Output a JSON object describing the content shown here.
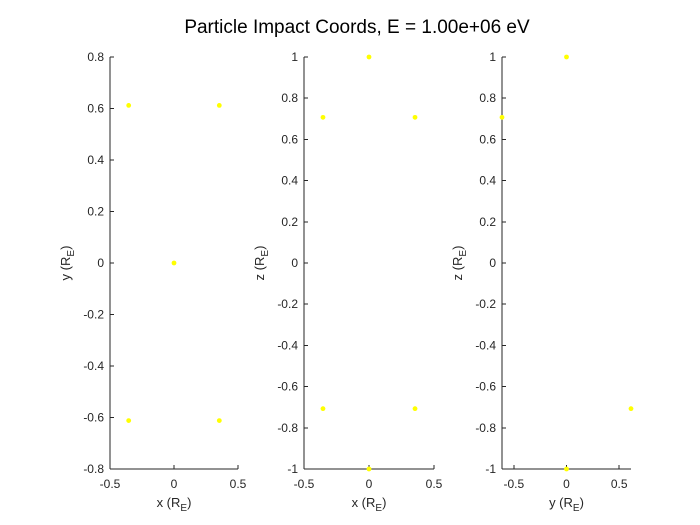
{
  "figure": {
    "title": "Particle Impact Coords, E = 1.00e+06 eV",
    "background": "#ffffff",
    "axis_color": "#262626"
  },
  "chart_data": [
    {
      "type": "scatter",
      "xlabel": {
        "main": "x (R",
        "sub": "E",
        "close": ")"
      },
      "ylabel": {
        "main": "y (R",
        "sub": "E",
        "close": ")"
      },
      "xlim": [
        -0.5,
        0.5
      ],
      "ylim": [
        -0.8,
        0.8
      ],
      "xticks": [
        -0.5,
        0,
        0.5
      ],
      "xtick_labels": [
        "-0.5",
        "0",
        "0.5"
      ],
      "yticks": [
        -0.8,
        -0.6,
        -0.4,
        -0.2,
        0,
        0.2,
        0.4,
        0.6,
        0.8
      ],
      "ytick_labels": [
        "-0.8",
        "-0.6",
        "-0.4",
        "-0.2",
        "0",
        "0.2",
        "0.4",
        "0.6",
        "0.8"
      ],
      "grid": false,
      "marker_color": "#ffff00",
      "points": [
        {
          "x": -0.354,
          "y": 0.612
        },
        {
          "x": 0.354,
          "y": 0.612
        },
        {
          "x": 0.0,
          "y": 0.0
        },
        {
          "x": -0.354,
          "y": -0.612
        },
        {
          "x": 0.354,
          "y": -0.612
        }
      ]
    },
    {
      "type": "scatter",
      "xlabel": {
        "main": "x (R",
        "sub": "E",
        "close": ")"
      },
      "ylabel": {
        "main": "z (R",
        "sub": "E",
        "close": ")"
      },
      "xlim": [
        -0.5,
        0.5
      ],
      "ylim": [
        -1,
        1
      ],
      "xticks": [
        -0.5,
        0,
        0.5
      ],
      "xtick_labels": [
        "-0.5",
        "0",
        "0.5"
      ],
      "yticks": [
        -1,
        -0.8,
        -0.6,
        -0.4,
        -0.2,
        0,
        0.2,
        0.4,
        0.6,
        0.8,
        1
      ],
      "ytick_labels": [
        "-1",
        "-0.8",
        "-0.6",
        "-0.4",
        "-0.2",
        "0",
        "0.2",
        "0.4",
        "0.6",
        "0.8",
        "1"
      ],
      "grid": false,
      "marker_color": "#ffff00",
      "points": [
        {
          "x": 0.0,
          "y": 1.0
        },
        {
          "x": -0.354,
          "y": 0.707
        },
        {
          "x": 0.354,
          "y": 0.707
        },
        {
          "x": -0.354,
          "y": -0.707
        },
        {
          "x": 0.354,
          "y": -0.707
        },
        {
          "x": 0.0,
          "y": -1.0
        }
      ]
    },
    {
      "type": "scatter",
      "xlabel": {
        "main": "y (R",
        "sub": "E",
        "close": ")"
      },
      "ylabel": {
        "main": "z (R",
        "sub": "E",
        "close": ")"
      },
      "xlim": [
        -0.612,
        0.612
      ],
      "ylim": [
        -1,
        1
      ],
      "xticks": [
        -0.5,
        0,
        0.5
      ],
      "xtick_labels": [
        "-0.5",
        "0",
        "0.5"
      ],
      "yticks": [
        -1,
        -0.8,
        -0.6,
        -0.4,
        -0.2,
        0,
        0.2,
        0.4,
        0.6,
        0.8,
        1
      ],
      "ytick_labels": [
        "-1",
        "-0.8",
        "-0.6",
        "-0.4",
        "-0.2",
        "0",
        "0.2",
        "0.4",
        "0.6",
        "0.8",
        "1"
      ],
      "grid": false,
      "marker_color": "#ffff00",
      "points": [
        {
          "x": 0.0,
          "y": 1.0
        },
        {
          "x": -0.612,
          "y": 0.707
        },
        {
          "x": 0.612,
          "y": -0.707
        },
        {
          "x": 0.0,
          "y": -1.0
        }
      ]
    }
  ]
}
